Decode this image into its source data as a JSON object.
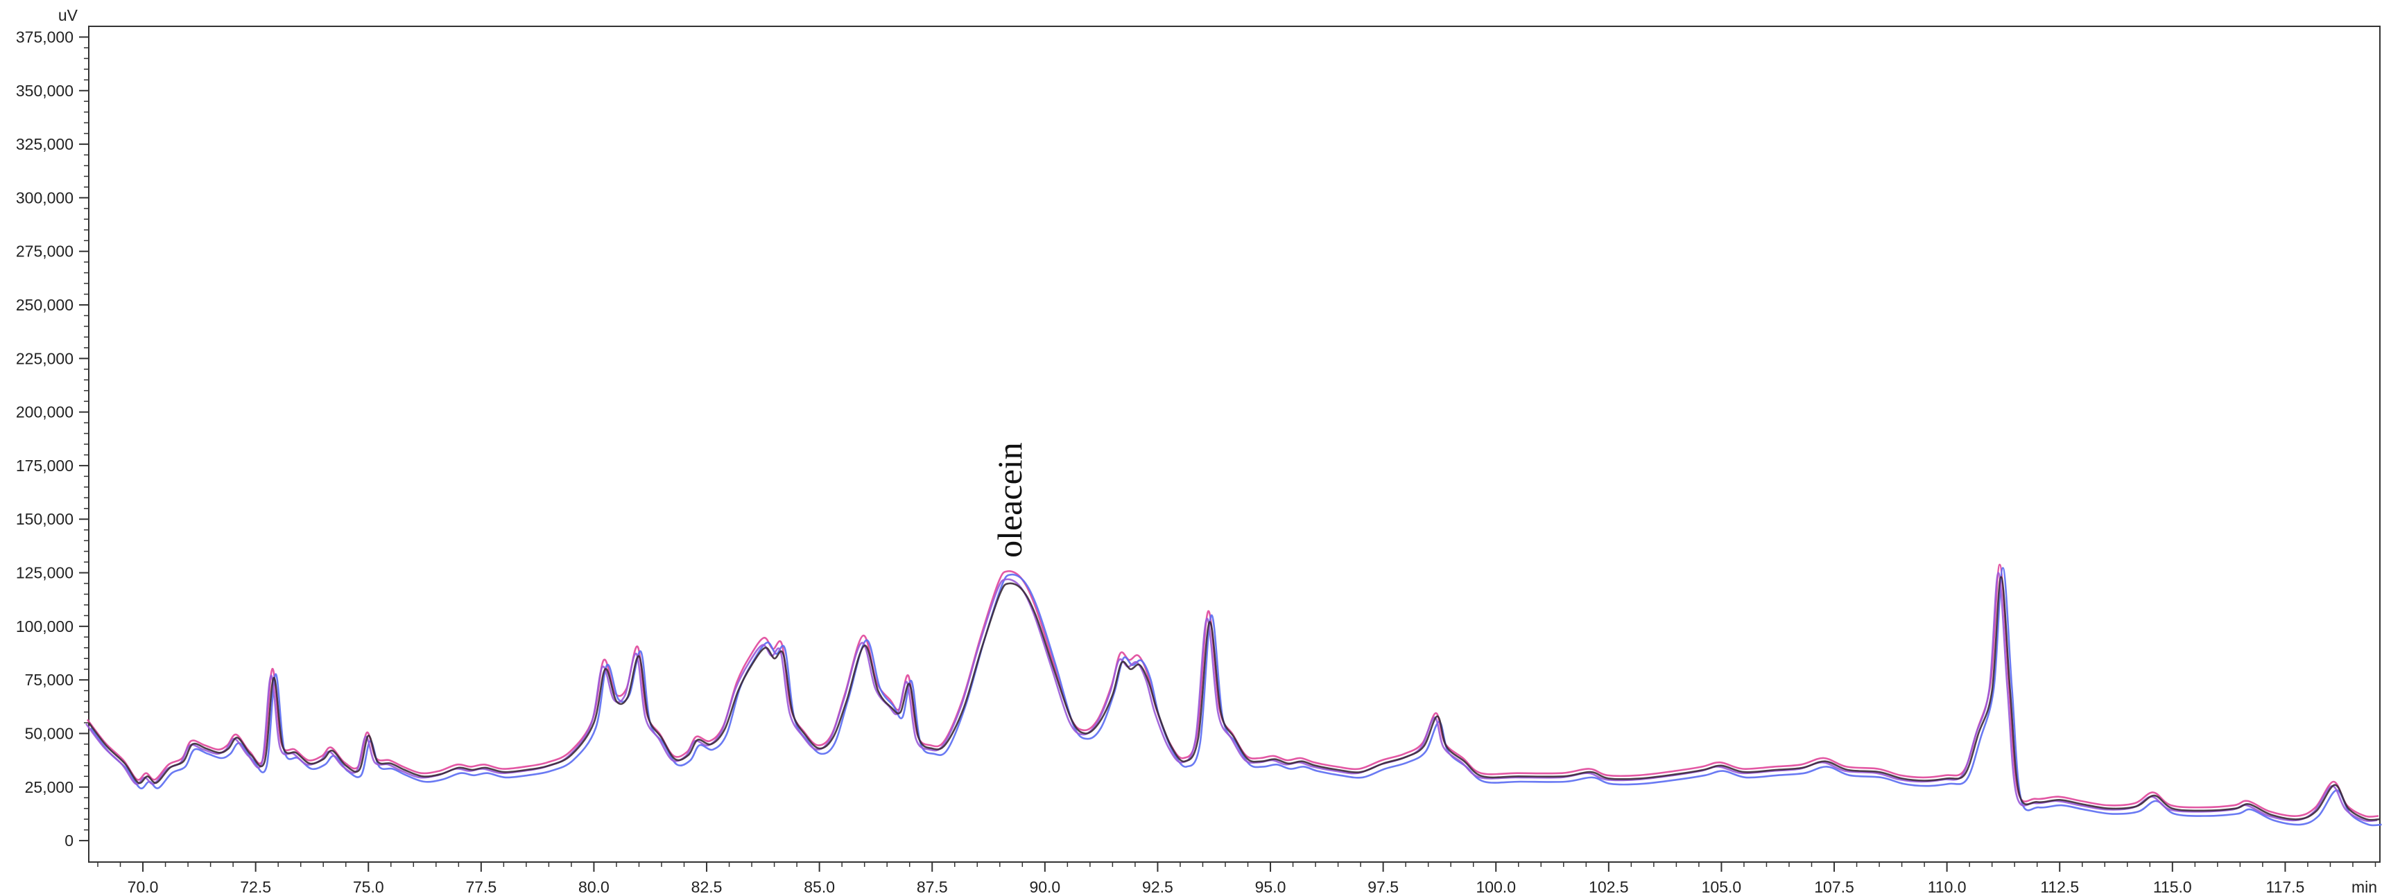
{
  "chart_data": {
    "type": "line",
    "title": "",
    "xlabel": "min",
    "ylabel": "uV",
    "xlim": [
      68.8,
      119.6
    ],
    "ylim": [
      -10000,
      380000
    ],
    "grid": false,
    "legend": "none",
    "x_ticks": [
      70.0,
      72.5,
      75.0,
      77.5,
      80.0,
      82.5,
      85.0,
      87.5,
      90.0,
      92.5,
      95.0,
      97.5,
      100.0,
      102.5,
      105.0,
      107.5,
      110.0,
      112.5,
      115.0,
      117.5
    ],
    "x_tick_labels": [
      "70.0",
      "72.5",
      "75.0",
      "77.5",
      "80.0",
      "82.5",
      "85.0",
      "87.5",
      "90.0",
      "92.5",
      "95.0",
      "97.5",
      "100.0",
      "102.5",
      "105.0",
      "107.5",
      "110.0",
      "112.5",
      "115.0",
      "117.5"
    ],
    "y_ticks": [
      0,
      25000,
      50000,
      75000,
      100000,
      125000,
      150000,
      175000,
      200000,
      225000,
      250000,
      275000,
      300000,
      325000,
      350000,
      375000
    ],
    "y_tick_labels": [
      "0",
      "25,000",
      "50,000",
      "75,000",
      "100,000",
      "125,000",
      "150,000",
      "175,000",
      "200,000",
      "225,000",
      "250,000",
      "275,000",
      "300,000",
      "325,000",
      "350,000",
      "375,000"
    ],
    "annotations": [
      {
        "text": "oleacein",
        "x": 89.2,
        "y": 132000,
        "rotation": -90
      }
    ],
    "baseline": [
      [
        68.8,
        55000
      ],
      [
        69.2,
        44000
      ],
      [
        69.6,
        36000
      ],
      [
        69.9,
        27000
      ],
      [
        70.1,
        30000
      ],
      [
        70.3,
        27000
      ],
      [
        70.6,
        34000
      ],
      [
        70.9,
        37000
      ],
      [
        71.1,
        45000
      ],
      [
        71.4,
        43000
      ],
      [
        71.7,
        41000
      ],
      [
        71.9,
        43000
      ],
      [
        72.1,
        48000
      ],
      [
        72.4,
        40000
      ],
      [
        72.7,
        37000
      ],
      [
        72.9,
        76000
      ],
      [
        73.1,
        44000
      ],
      [
        73.4,
        41000
      ],
      [
        73.7,
        36000
      ],
      [
        74.0,
        38000
      ],
      [
        74.2,
        42000
      ],
      [
        74.5,
        35000
      ],
      [
        74.8,
        33000
      ],
      [
        75.0,
        49000
      ],
      [
        75.2,
        37000
      ],
      [
        75.5,
        36000
      ],
      [
        75.8,
        33000
      ],
      [
        76.2,
        30000
      ],
      [
        76.6,
        31000
      ],
      [
        77.0,
        34000
      ],
      [
        77.3,
        33000
      ],
      [
        77.6,
        34000
      ],
      [
        78.0,
        32000
      ],
      [
        78.5,
        33000
      ],
      [
        79.0,
        35000
      ],
      [
        79.5,
        40000
      ],
      [
        80.0,
        55000
      ],
      [
        80.25,
        80000
      ],
      [
        80.5,
        65000
      ],
      [
        80.75,
        67000
      ],
      [
        81.0,
        86000
      ],
      [
        81.2,
        58000
      ],
      [
        81.5,
        48000
      ],
      [
        81.8,
        38000
      ],
      [
        82.1,
        40000
      ],
      [
        82.3,
        47000
      ],
      [
        82.6,
        45000
      ],
      [
        82.9,
        52000
      ],
      [
        83.2,
        70000
      ],
      [
        83.5,
        82000
      ],
      [
        83.8,
        90000
      ],
      [
        84.0,
        85000
      ],
      [
        84.2,
        87000
      ],
      [
        84.4,
        60000
      ],
      [
        84.7,
        49000
      ],
      [
        85.0,
        43000
      ],
      [
        85.3,
        48000
      ],
      [
        85.6,
        65000
      ],
      [
        86.0,
        91000
      ],
      [
        86.3,
        70000
      ],
      [
        86.6,
        62000
      ],
      [
        86.8,
        60000
      ],
      [
        87.0,
        73000
      ],
      [
        87.2,
        48000
      ],
      [
        87.5,
        43000
      ],
      [
        87.8,
        45000
      ],
      [
        88.2,
        62000
      ],
      [
        88.6,
        90000
      ],
      [
        89.0,
        115000
      ],
      [
        89.2,
        120000
      ],
      [
        89.5,
        117000
      ],
      [
        89.8,
        105000
      ],
      [
        90.2,
        80000
      ],
      [
        90.6,
        56000
      ],
      [
        90.9,
        50000
      ],
      [
        91.2,
        55000
      ],
      [
        91.5,
        68000
      ],
      [
        91.7,
        83000
      ],
      [
        91.9,
        80000
      ],
      [
        92.1,
        82000
      ],
      [
        92.3,
        74000
      ],
      [
        92.5,
        60000
      ],
      [
        92.8,
        44000
      ],
      [
        93.1,
        37000
      ],
      [
        93.4,
        48000
      ],
      [
        93.65,
        102000
      ],
      [
        93.9,
        60000
      ],
      [
        94.2,
        48000
      ],
      [
        94.5,
        38000
      ],
      [
        94.8,
        37000
      ],
      [
        95.1,
        38000
      ],
      [
        95.4,
        36000
      ],
      [
        95.7,
        37000
      ],
      [
        96.0,
        35000
      ],
      [
        96.5,
        33000
      ],
      [
        97.0,
        32000
      ],
      [
        97.5,
        36000
      ],
      [
        98.0,
        39000
      ],
      [
        98.4,
        44000
      ],
      [
        98.7,
        58000
      ],
      [
        98.9,
        44000
      ],
      [
        99.3,
        37000
      ],
      [
        99.7,
        30000
      ],
      [
        100.5,
        30000
      ],
      [
        101.5,
        30000
      ],
      [
        102.1,
        32000
      ],
      [
        102.5,
        29000
      ],
      [
        103.2,
        29000
      ],
      [
        104.0,
        31000
      ],
      [
        104.6,
        33000
      ],
      [
        105.0,
        35000
      ],
      [
        105.5,
        32000
      ],
      [
        106.2,
        33000
      ],
      [
        106.8,
        34000
      ],
      [
        107.3,
        37000
      ],
      [
        107.8,
        33000
      ],
      [
        108.5,
        32000
      ],
      [
        109.0,
        29000
      ],
      [
        109.5,
        28000
      ],
      [
        110.0,
        29000
      ],
      [
        110.4,
        31000
      ],
      [
        110.7,
        50000
      ],
      [
        111.0,
        70000
      ],
      [
        111.2,
        123000
      ],
      [
        111.4,
        70000
      ],
      [
        111.6,
        22000
      ],
      [
        112.0,
        18000
      ],
      [
        112.5,
        19000
      ],
      [
        113.0,
        17000
      ],
      [
        113.6,
        15000
      ],
      [
        114.2,
        16000
      ],
      [
        114.6,
        21000
      ],
      [
        115.0,
        15000
      ],
      [
        115.7,
        14000
      ],
      [
        116.4,
        15000
      ],
      [
        116.7,
        17000
      ],
      [
        117.2,
        12000
      ],
      [
        117.8,
        10000
      ],
      [
        118.2,
        14000
      ],
      [
        118.6,
        26000
      ],
      [
        118.9,
        15000
      ],
      [
        119.3,
        10000
      ],
      [
        119.6,
        10000
      ]
    ],
    "series": [
      {
        "color": "#3b2a38",
        "dx": 0.0,
        "dy": 0,
        "peak_scale": 1.0
      },
      {
        "color": "#e0469a",
        "dx": -0.03,
        "dy": 1500,
        "peak_scale": 1.035
      },
      {
        "color": "#5a6cf2",
        "dx": 0.04,
        "dy": -2500,
        "peak_scale": 1.055
      },
      {
        "color": "#9a5ad8",
        "dx": -0.06,
        "dy": -500,
        "peak_scale": 1.02
      }
    ]
  }
}
